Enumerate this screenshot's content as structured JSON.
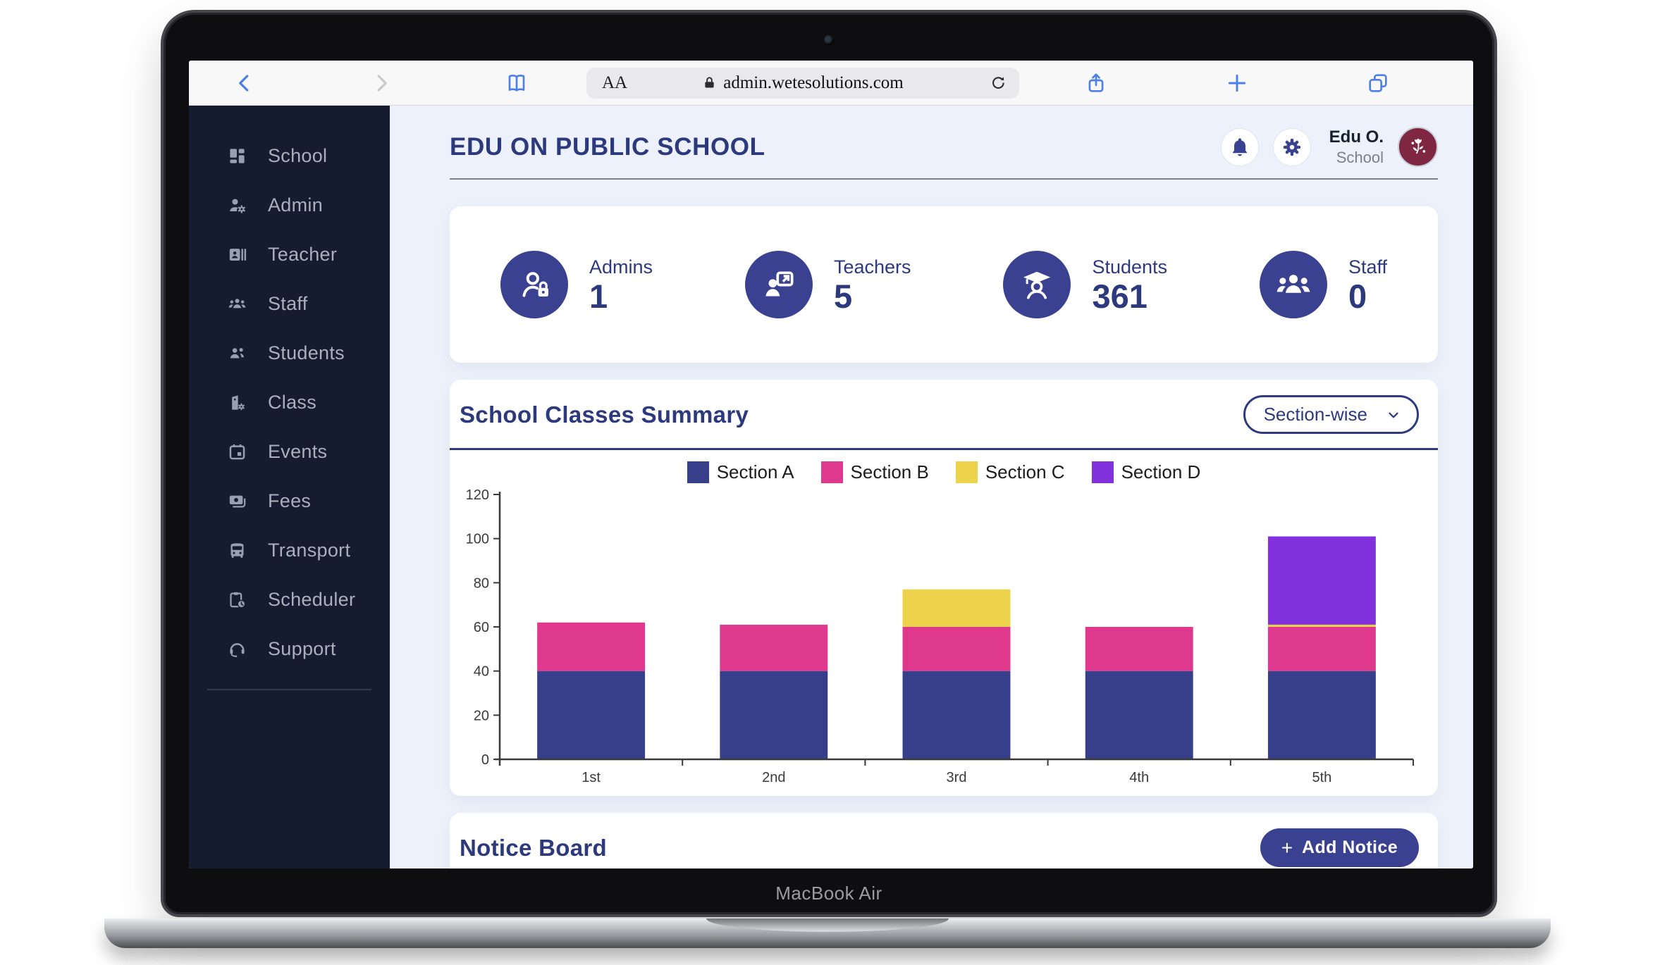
{
  "browser": {
    "url_text_size": "AA",
    "url": "admin.wetesolutions.com"
  },
  "device": {
    "label": "MacBook Air"
  },
  "sidebar": {
    "items": [
      {
        "label": "School",
        "icon": "dashboard-icon"
      },
      {
        "label": "Admin",
        "icon": "manage-accounts-icon"
      },
      {
        "label": "Teacher",
        "icon": "badge-icon"
      },
      {
        "label": "Staff",
        "icon": "groups-icon"
      },
      {
        "label": "Students",
        "icon": "people-icon"
      },
      {
        "label": "Class",
        "icon": "class-building-icon"
      },
      {
        "label": "Events",
        "icon": "calendar-icon"
      },
      {
        "label": "Fees",
        "icon": "payments-icon"
      },
      {
        "label": "Transport",
        "icon": "bus-icon"
      },
      {
        "label": "Scheduler",
        "icon": "pending-actions-icon"
      },
      {
        "label": "Support",
        "icon": "headset-icon"
      }
    ]
  },
  "header": {
    "title": "EDU ON PUBLIC SCHOOL",
    "user_name": "Edu O.",
    "user_role": "School"
  },
  "stats": [
    {
      "label": "Admins",
      "value": "1",
      "icon": "admin-lock-icon"
    },
    {
      "label": "Teachers",
      "value": "5",
      "icon": "teacher-board-icon"
    },
    {
      "label": "Students",
      "value": "361",
      "icon": "graduate-icon"
    },
    {
      "label": "Staff",
      "value": "0",
      "icon": "staff-group-icon"
    }
  ],
  "classes_summary": {
    "title": "School Classes Summary",
    "filter_value": "Section-wise"
  },
  "chart_data": {
    "type": "bar",
    "stacked": true,
    "title": "School Classes Summary",
    "xlabel": "",
    "ylabel": "",
    "categories": [
      "1st",
      "2nd",
      "3rd",
      "4th",
      "5th"
    ],
    "series": [
      {
        "name": "Section A",
        "color": "#383f8a",
        "values": [
          40,
          40,
          40,
          40,
          40
        ]
      },
      {
        "name": "Section B",
        "color": "#df398d",
        "values": [
          22,
          21,
          20,
          20,
          20
        ]
      },
      {
        "name": "Section C",
        "color": "#edd34b",
        "values": [
          0,
          0,
          17,
          0,
          1
        ]
      },
      {
        "name": "Section D",
        "color": "#8132dd",
        "values": [
          0,
          0,
          0,
          0,
          40
        ]
      }
    ],
    "ylim": [
      0,
      120
    ],
    "yticks": [
      0,
      20,
      40,
      60,
      80,
      100,
      120
    ],
    "legend_position": "top",
    "grid": false
  },
  "notice_board": {
    "title": "Notice Board",
    "add_button": {
      "plus": "+",
      "label": "Add Notice"
    }
  },
  "colors": {
    "primary": "#2e3a80",
    "stat_circle": "#3b4191",
    "sidebar_bg": "#151c2f",
    "content_bg": "#edf1fb",
    "avatar_bg": "#7e2642",
    "safari_blue": "#4d7fe8",
    "axis": "#3a3a3a"
  }
}
